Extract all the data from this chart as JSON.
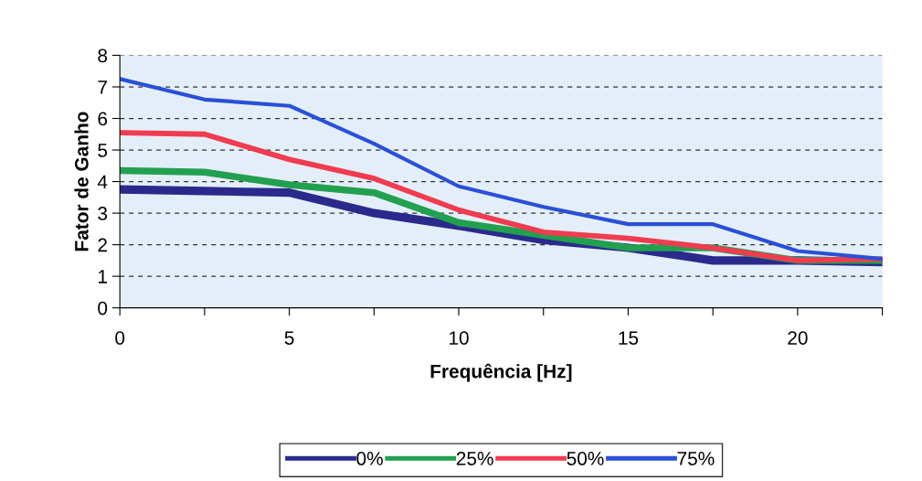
{
  "chart_data": {
    "type": "line",
    "xlabel": "Frequência [Hz]",
    "ylabel": "Fator de Ganho",
    "x": [
      0,
      2.5,
      5,
      7.5,
      10,
      12.5,
      15,
      17.5,
      20,
      22.5
    ],
    "series": [
      {
        "name": "0%",
        "color": "#2a2a8c",
        "values": [
          3.75,
          3.7,
          3.65,
          3.0,
          2.6,
          2.15,
          1.9,
          1.5,
          1.5,
          1.45
        ]
      },
      {
        "name": "25%",
        "color": "#22a050",
        "values": [
          4.35,
          4.3,
          3.9,
          3.65,
          2.7,
          2.3,
          1.9,
          1.9,
          1.5,
          1.5
        ]
      },
      {
        "name": "50%",
        "color": "#f03c50",
        "values": [
          5.55,
          5.5,
          4.7,
          4.1,
          3.1,
          2.4,
          2.2,
          1.9,
          1.5,
          1.55
        ]
      },
      {
        "name": "75%",
        "color": "#2a50d8",
        "values": [
          7.25,
          6.6,
          6.4,
          5.2,
          3.85,
          3.2,
          2.65,
          2.65,
          1.8,
          1.55
        ]
      }
    ],
    "xlim": [
      0,
      22.5
    ],
    "xticks": [
      0,
      {
        "value": 2.5,
        "label": null
      },
      5,
      {
        "value": 7.5,
        "label": null
      },
      10,
      {
        "value": 12.5,
        "label": null
      },
      15,
      {
        "value": 17.5,
        "label": null
      },
      20,
      {
        "value": 22.5,
        "label": null
      }
    ],
    "ylim": [
      0,
      8
    ],
    "yticks": [
      0,
      1,
      2,
      3,
      4,
      5,
      6,
      7,
      8
    ],
    "grid": "y",
    "legend": "bottom",
    "marker": "none",
    "line_style": "solid"
  }
}
